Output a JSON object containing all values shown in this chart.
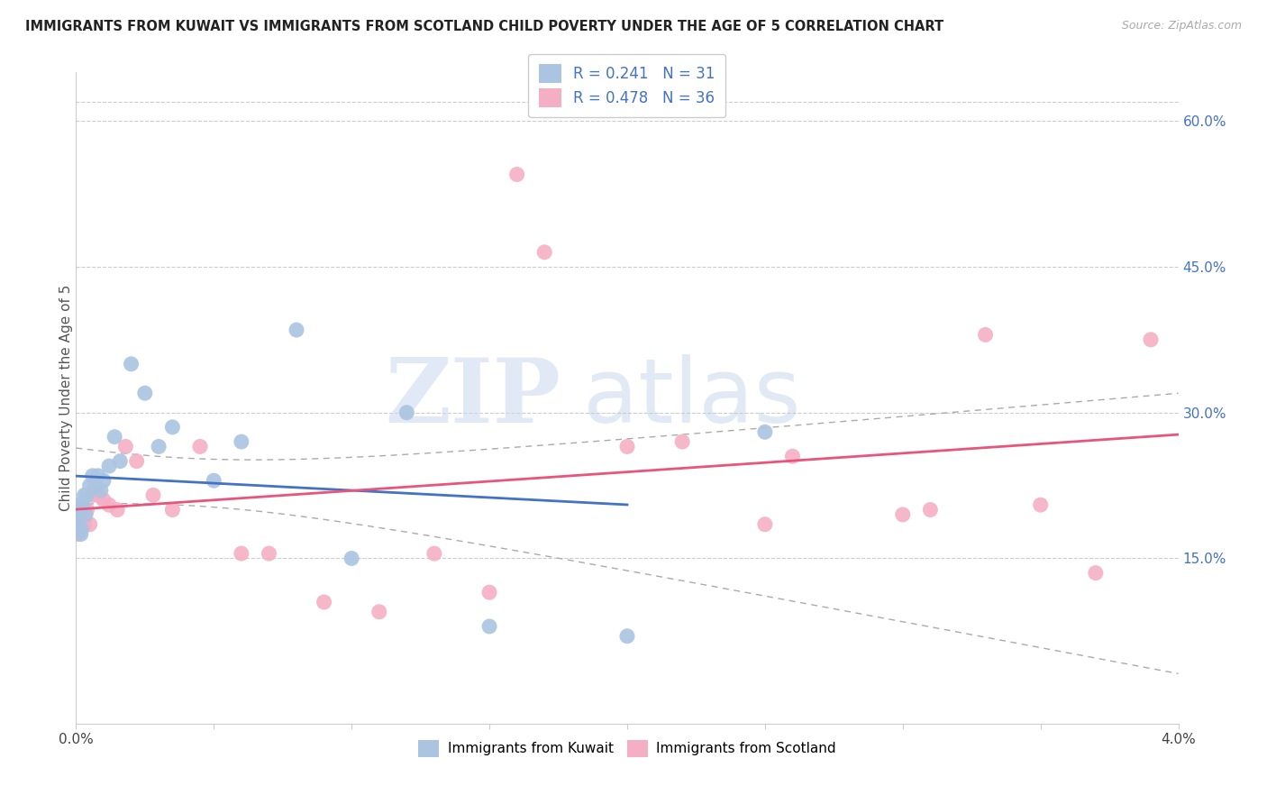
{
  "title": "IMMIGRANTS FROM KUWAIT VS IMMIGRANTS FROM SCOTLAND CHILD POVERTY UNDER THE AGE OF 5 CORRELATION CHART",
  "source": "Source: ZipAtlas.com",
  "ylabel": "Child Poverty Under the Age of 5",
  "right_yticks": [
    0.15,
    0.3,
    0.45,
    0.6
  ],
  "right_yticklabels": [
    "15.0%",
    "30.0%",
    "45.0%",
    "60.0%"
  ],
  "xlim": [
    0.0,
    0.04
  ],
  "ylim": [
    -0.02,
    0.65
  ],
  "kuwait_color": "#aac4e2",
  "scotland_color": "#f4afc4",
  "kuwait_R": 0.241,
  "kuwait_N": 31,
  "scotland_R": 0.478,
  "scotland_N": 36,
  "kuwait_label": "Immigrants from Kuwait",
  "scotland_label": "Immigrants from Scotland",
  "trend_line_kuwait_color": "#4472c4",
  "trend_line_scotland_color": "#e8557a",
  "ci_color": "#aaaaaa",
  "watermark_zip": "ZIP",
  "watermark_atlas": "atlas",
  "kuwait_scatter_x": [
    5e-05,
    8e-05,
    0.0001,
    0.00015,
    0.00018,
    0.0002,
    0.00025,
    0.0003,
    0.00035,
    0.0004,
    0.0005,
    0.0006,
    0.0007,
    0.0008,
    0.0009,
    0.001,
    0.0012,
    0.0014,
    0.0016,
    0.002,
    0.0025,
    0.003,
    0.0035,
    0.005,
    0.006,
    0.008,
    0.01,
    0.012,
    0.015,
    0.02,
    0.025
  ],
  "kuwait_scatter_y": [
    0.195,
    0.185,
    0.205,
    0.2,
    0.175,
    0.18,
    0.205,
    0.215,
    0.195,
    0.215,
    0.225,
    0.235,
    0.225,
    0.235,
    0.22,
    0.23,
    0.245,
    0.275,
    0.25,
    0.35,
    0.32,
    0.265,
    0.285,
    0.23,
    0.27,
    0.385,
    0.15,
    0.3,
    0.08,
    0.07,
    0.28
  ],
  "scotland_scatter_x": [
    5e-05,
    8e-05,
    0.0001,
    0.00015,
    0.0002,
    0.0003,
    0.0004,
    0.0005,
    0.0006,
    0.0008,
    0.001,
    0.0012,
    0.0015,
    0.0018,
    0.0022,
    0.0028,
    0.0035,
    0.0045,
    0.006,
    0.007,
    0.009,
    0.011,
    0.013,
    0.015,
    0.016,
    0.017,
    0.02,
    0.022,
    0.025,
    0.026,
    0.03,
    0.031,
    0.033,
    0.035,
    0.037,
    0.039
  ],
  "scotland_scatter_y": [
    0.185,
    0.175,
    0.195,
    0.2,
    0.19,
    0.185,
    0.2,
    0.185,
    0.215,
    0.215,
    0.21,
    0.205,
    0.2,
    0.265,
    0.25,
    0.215,
    0.2,
    0.265,
    0.155,
    0.155,
    0.105,
    0.095,
    0.155,
    0.115,
    0.545,
    0.465,
    0.265,
    0.27,
    0.185,
    0.255,
    0.195,
    0.2,
    0.38,
    0.205,
    0.135,
    0.375
  ]
}
